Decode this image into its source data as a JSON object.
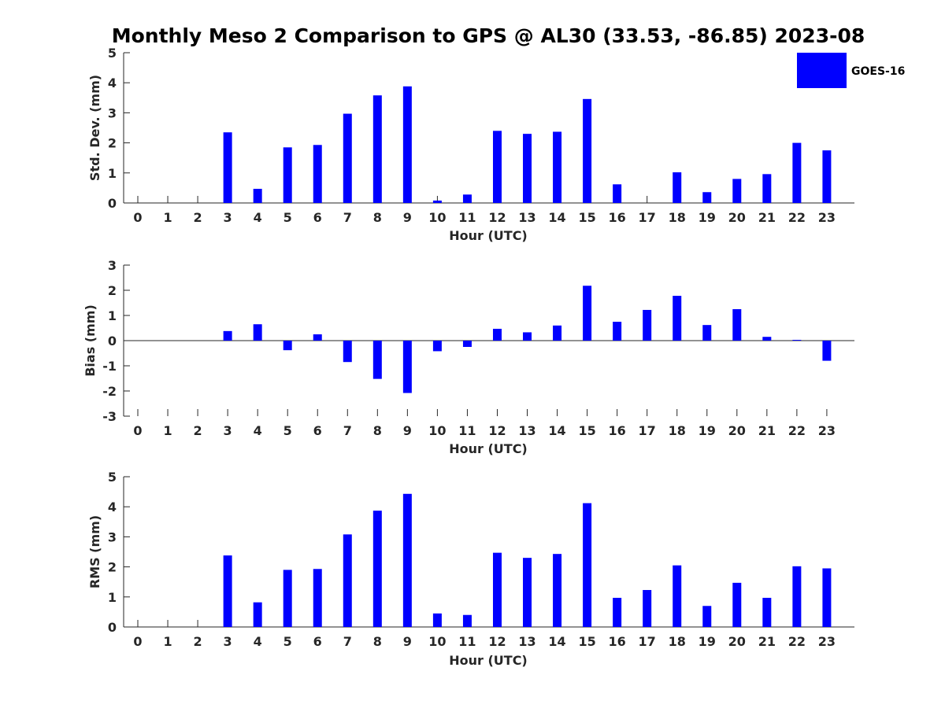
{
  "chart_data": {
    "title": "Monthly Meso 2 Comparison to GPS @ AL30 (33.53, -86.85) 2023-08",
    "type": "bar",
    "bar_color": "#0000ff",
    "legend": {
      "label": "GOES-16",
      "placement": "top-right"
    },
    "grid": false,
    "panels": [
      {
        "type": "bar",
        "xlabel": "Hour (UTC)",
        "ylabel": "Std. Dev. (mm)",
        "ylim": [
          0,
          5
        ],
        "yticks": [
          "0",
          "1",
          "2",
          "3",
          "4",
          "5"
        ],
        "categories": [
          "0",
          "1",
          "2",
          "3",
          "4",
          "5",
          "6",
          "7",
          "8",
          "9",
          "10",
          "11",
          "12",
          "13",
          "14",
          "15",
          "16",
          "17",
          "18",
          "19",
          "20",
          "21",
          "22",
          "23"
        ],
        "series": [
          {
            "name": "GOES-16",
            "values": [
              0,
              0,
              0,
              2.35,
              0.47,
              1.85,
              1.93,
              2.97,
              3.58,
              3.88,
              0.08,
              0.28,
              2.4,
              2.3,
              2.37,
              3.46,
              0.62,
              0,
              1.02,
              0.36,
              0.8,
              0.96,
              2.0,
              1.75
            ]
          }
        ]
      },
      {
        "type": "bar",
        "xlabel": "Hour (UTC)",
        "ylabel": "Bias (mm)",
        "ylim": [
          -3,
          3
        ],
        "yticks": [
          "-3",
          "-2",
          "-1",
          "0",
          "1",
          "2",
          "3"
        ],
        "categories": [
          "0",
          "1",
          "2",
          "3",
          "4",
          "5",
          "6",
          "7",
          "8",
          "9",
          "10",
          "11",
          "12",
          "13",
          "14",
          "15",
          "16",
          "17",
          "18",
          "19",
          "20",
          "21",
          "22",
          "23"
        ],
        "series": [
          {
            "name": "GOES-16",
            "values": [
              0,
              0,
              0,
              0.38,
              0.65,
              -0.38,
              0.25,
              -0.85,
              -1.52,
              -2.08,
              -0.42,
              -0.25,
              0.47,
              0.33,
              0.6,
              2.18,
              0.75,
              1.22,
              1.78,
              0.62,
              1.25,
              0.15,
              0.03,
              -0.8
            ]
          }
        ]
      },
      {
        "type": "bar",
        "xlabel": "Hour (UTC)",
        "ylabel": "RMS (mm)",
        "ylim": [
          0,
          5
        ],
        "yticks": [
          "0",
          "1",
          "2",
          "3",
          "4",
          "5"
        ],
        "categories": [
          "0",
          "1",
          "2",
          "3",
          "4",
          "5",
          "6",
          "7",
          "8",
          "9",
          "10",
          "11",
          "12",
          "13",
          "14",
          "15",
          "16",
          "17",
          "18",
          "19",
          "20",
          "21",
          "22",
          "23"
        ],
        "series": [
          {
            "name": "GOES-16",
            "values": [
              0,
              0,
              0,
              2.38,
              0.82,
              1.9,
              1.93,
              3.08,
              3.87,
              4.43,
              0.45,
              0.4,
              2.47,
              2.3,
              2.43,
              4.12,
              0.97,
              1.23,
              2.05,
              0.7,
              1.47,
              0.97,
              2.02,
              1.95
            ]
          }
        ]
      }
    ]
  }
}
